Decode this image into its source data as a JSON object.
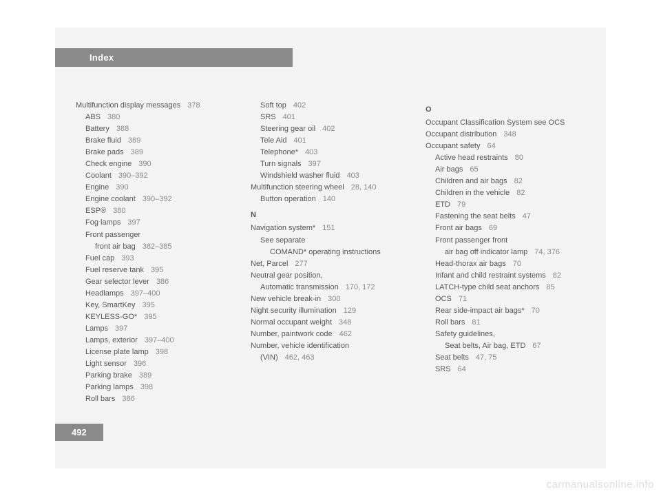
{
  "header": {
    "title": "Index"
  },
  "page_number": "492",
  "watermark": "carmanualsonline.info",
  "columns": [
    [
      {
        "text": "Multifunction display messages",
        "page": "378",
        "level": 0
      },
      {
        "text": "ABS",
        "page": "380",
        "level": 1
      },
      {
        "text": "Battery",
        "page": "388",
        "level": 1
      },
      {
        "text": "Brake fluid",
        "page": "389",
        "level": 1
      },
      {
        "text": "Brake pads",
        "page": "389",
        "level": 1
      },
      {
        "text": "Check engine",
        "page": "390",
        "level": 1
      },
      {
        "text": "Coolant",
        "page": "390–392",
        "level": 1
      },
      {
        "text": "Engine",
        "page": "390",
        "level": 1
      },
      {
        "text": "Engine coolant",
        "page": "390–392",
        "level": 1
      },
      {
        "text": "ESP®",
        "page": "380",
        "level": 1
      },
      {
        "text": "Fog lamps",
        "page": "397",
        "level": 1
      },
      {
        "text": "Front passenger",
        "page": "",
        "level": 1
      },
      {
        "text": "front air bag",
        "page": "382–385",
        "level": 2
      },
      {
        "text": "Fuel cap",
        "page": "393",
        "level": 1
      },
      {
        "text": "Fuel reserve tank",
        "page": "395",
        "level": 1
      },
      {
        "text": "Gear selector lever",
        "page": "386",
        "level": 1
      },
      {
        "text": "Headlamps",
        "page": "397–400",
        "level": 1
      },
      {
        "text": "Key, SmartKey",
        "page": "395",
        "level": 1
      },
      {
        "text": "KEYLESS-GO*",
        "page": "395",
        "level": 1
      },
      {
        "text": "Lamps",
        "page": "397",
        "level": 1
      },
      {
        "text": "Lamps, exterior",
        "page": "397–400",
        "level": 1
      },
      {
        "text": "License plate lamp",
        "page": "398",
        "level": 1
      },
      {
        "text": "Light sensor",
        "page": "396",
        "level": 1
      },
      {
        "text": "Parking brake",
        "page": "389",
        "level": 1
      },
      {
        "text": "Parking lamps",
        "page": "398",
        "level": 1
      },
      {
        "text": "Roll bars",
        "page": "386",
        "level": 1
      }
    ],
    [
      {
        "text": "Soft top",
        "page": "402",
        "level": 1
      },
      {
        "text": "SRS",
        "page": "401",
        "level": 1
      },
      {
        "text": "Steering gear oil",
        "page": "402",
        "level": 1
      },
      {
        "text": "Tele Aid",
        "page": "401",
        "level": 1
      },
      {
        "text": "Telephone*",
        "page": "403",
        "level": 1
      },
      {
        "text": "Turn signals",
        "page": "397",
        "level": 1
      },
      {
        "text": "Windshield washer fluid",
        "page": "403",
        "level": 1
      },
      {
        "text": "Multifunction steering wheel",
        "page": "28, 140",
        "level": 0
      },
      {
        "text": "Button operation",
        "page": "140",
        "level": 1
      },
      {
        "letter": "N"
      },
      {
        "text": "Navigation system*",
        "page": "151",
        "level": 0
      },
      {
        "text": "See separate",
        "page": "",
        "level": 1
      },
      {
        "text": "COMAND* operating instructions",
        "page": "",
        "level": 2
      },
      {
        "text": "Net, Parcel",
        "page": "277",
        "level": 0
      },
      {
        "text": "Neutral gear position,",
        "page": "",
        "level": 0
      },
      {
        "text": "Automatic transmission",
        "page": "170, 172",
        "level": 1
      },
      {
        "text": "New vehicle break-in",
        "page": "300",
        "level": 0
      },
      {
        "text": "Night security illumination",
        "page": "129",
        "level": 0
      },
      {
        "text": "Normal occupant weight",
        "page": "348",
        "level": 0
      },
      {
        "text": "Number, paintwork code",
        "page": "462",
        "level": 0
      },
      {
        "text": "Number, vehicle identification",
        "page": "",
        "level": 0
      },
      {
        "text": "(VIN)",
        "page": "462, 463",
        "level": 1
      }
    ],
    [
      {
        "letter": "O"
      },
      {
        "text": "Occupant Classification System see OCS",
        "page": "",
        "level": 0
      },
      {
        "text": "Occupant distribution",
        "page": "348",
        "level": 0
      },
      {
        "text": "Occupant safety",
        "page": "64",
        "level": 0
      },
      {
        "text": "Active head restraints",
        "page": "80",
        "level": 1
      },
      {
        "text": "Air bags",
        "page": "65",
        "level": 1
      },
      {
        "text": "Children and air bags",
        "page": "82",
        "level": 1
      },
      {
        "text": "Children in the vehicle",
        "page": "82",
        "level": 1
      },
      {
        "text": "ETD",
        "page": "79",
        "level": 1
      },
      {
        "text": "Fastening the seat belts",
        "page": "47",
        "level": 1
      },
      {
        "text": "Front air bags",
        "page": "69",
        "level": 1
      },
      {
        "text": "Front passenger front",
        "page": "",
        "level": 1
      },
      {
        "text": "air bag off indicator lamp",
        "page": "74, 376",
        "level": 2
      },
      {
        "text": "Head-thorax air bags",
        "page": "70",
        "level": 1
      },
      {
        "text": "Infant and child restraint systems",
        "page": "82",
        "level": 1
      },
      {
        "text": "LATCH-type child seat anchors",
        "page": "85",
        "level": 1
      },
      {
        "text": "OCS",
        "page": "71",
        "level": 1
      },
      {
        "text": "Rear side-impact air bags*",
        "page": "70",
        "level": 1
      },
      {
        "text": "Roll bars",
        "page": "81",
        "level": 1
      },
      {
        "text": "Safety guidelines,",
        "page": "",
        "level": 1
      },
      {
        "text": "Seat belts, Air bag, ETD",
        "page": "67",
        "level": 2
      },
      {
        "text": "Seat belts",
        "page": "47, 75",
        "level": 1
      },
      {
        "text": "SRS",
        "page": "64",
        "level": 1
      }
    ]
  ]
}
